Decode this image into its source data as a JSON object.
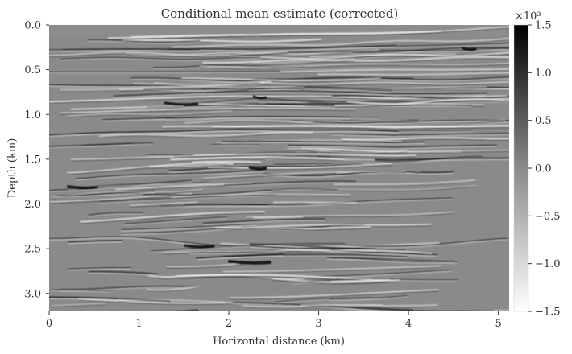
{
  "chart_data": {
    "type": "heatmap",
    "title": "Conditional mean estimate (corrected)",
    "xlabel": "Horizontal distance (km)",
    "ylabel": "Depth (km)",
    "xlim": [
      0,
      5.12
    ],
    "ylim": [
      3.2,
      0.0
    ],
    "x_ticks": [
      "0",
      "1",
      "2",
      "3",
      "4",
      "5"
    ],
    "x_tick_values": [
      0,
      1,
      2,
      3,
      4,
      5
    ],
    "y_ticks": [
      "0.0",
      "0.5",
      "1.0",
      "1.5",
      "2.0",
      "2.5",
      "3.0"
    ],
    "y_tick_values": [
      0.0,
      0.5,
      1.0,
      1.5,
      2.0,
      2.5,
      3.0
    ],
    "colormap": "grayscale (white = low, black = high)",
    "grid": false,
    "colorbar": {
      "multiplier": "×10³",
      "ticks": [
        "1.5",
        "1.0",
        "0.5",
        "0.0",
        "−0.5",
        "−1.0",
        "−1.5"
      ],
      "tick_values": [
        1.5,
        1.0,
        0.5,
        0.0,
        -0.5,
        -1.0,
        -1.5
      ],
      "vmin": -1.5,
      "vmax": 1.5,
      "low_color": "#ffffff",
      "high_color": "#000000"
    }
  },
  "colors": {
    "background": "#ffffff",
    "mid_gray": "#8a8a8a",
    "text": "#333333"
  }
}
